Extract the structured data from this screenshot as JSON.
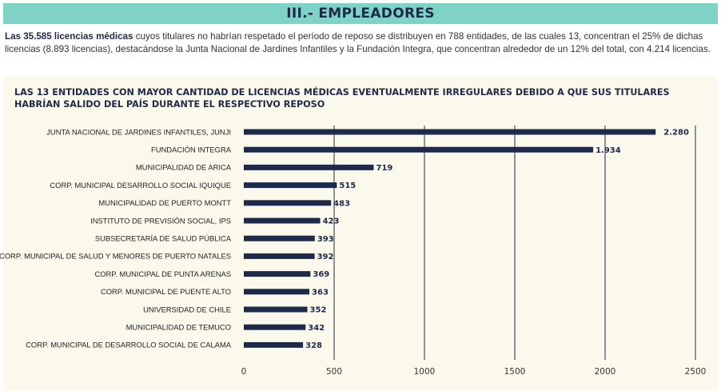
{
  "header": {
    "title": "III.- EMPLEADORES"
  },
  "intro": {
    "bold": "Las 35.585 licencias médicas",
    "rest": " cuyos titulares no habrían respetado el período de reposo se distribuyen en 788 entidades, de las cuales 13, concentran el 25% de dichas licencias (8.893 licencias), destacándose la Junta Nacional de Jardines Infantiles y la Fundación Integra, que concentran alrededor de un 12% del total, con 4.214 licencias."
  },
  "colors": {
    "bar": "#1f2a4a",
    "header": "#7fd3c6",
    "panel": "#fbf8ec",
    "grid": "#1f2a4a"
  },
  "chart_data": {
    "type": "bar",
    "orientation": "horizontal",
    "title": "LAS 13 ENTIDADES CON MAYOR CANTIDAD DE LICENCIAS MÉDICAS EVENTUALMENTE IRREGULARES DEBIDO A QUE SUS TITULARES HABRÍAN SALIDO DEL PAÍS DURANTE EL RESPECTIVO REPOSO",
    "categories": [
      "JUNTA NACIONAL DE JARDINES INFANTILES, JUNJI",
      "FUNDACIÓN INTEGRA",
      "MUNICIPALIDAD DE ARICA",
      "CORP. MUNICIPAL DESARROLLO SOCIAL IQUIQUE",
      "MUNICIPALIDAD DE PUERTO MONTT",
      "INSTITUTO DE PREVISIÓN SOCIAL, IPS",
      "SUBSECRETARÍA DE SALUD PÚBLICA",
      "CORP. MUNICIPAL DE SALUD Y MENORES DE PUERTO NATALES",
      "CORP. MUNICIPAL DE PUNTA ARENAS",
      "CORP. MUNICIPAL DE PUENTE ALTO",
      "UNIVERSIDAD DE CHILE",
      "MUNICIPALIDAD DE TEMUCO",
      "CORP. MUNICIPAL DE DESARROLLO SOCIAL DE CALAMA"
    ],
    "values": [
      2280,
      1934,
      719,
      515,
      483,
      423,
      393,
      392,
      369,
      363,
      352,
      342,
      328
    ],
    "value_labels": [
      "2.280",
      "1.934",
      "719",
      "515",
      "483",
      "423",
      "393",
      "392",
      "369",
      "363",
      "352",
      "342",
      "328"
    ],
    "xlim": [
      0,
      2500
    ],
    "xticks": [
      0,
      500,
      1000,
      1500,
      2000,
      2500
    ],
    "xtick_labels": [
      "0",
      "500",
      "1000",
      "1500",
      "2000",
      "2500"
    ],
    "grid": true
  }
}
